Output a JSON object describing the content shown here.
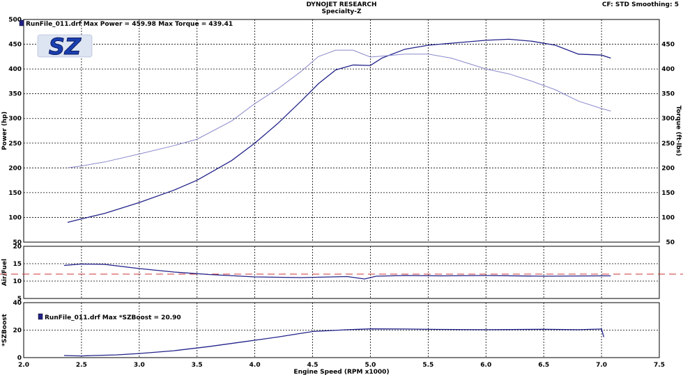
{
  "header": {
    "title": "DYNOJET RESEARCH",
    "subtitle": "Specialty-Z",
    "cf_label": "CF: STD  Smoothing: 5"
  },
  "logo": {
    "text": "SZ"
  },
  "colors": {
    "power": "#22228a",
    "torque": "#8888cc",
    "boost": "#22228a",
    "afr": "#22228a",
    "afr_ref": "#cc3333",
    "grid": "#000000"
  },
  "chart_data": [
    {
      "type": "line",
      "panel": "main",
      "legend": "RunFile_011.drf Max Power = 459.98    Max Torque = 439.41",
      "xlabel": "Engine Speed (RPM x1000)",
      "ylabel": "Power (hp)",
      "y2label": "Torque (ft-lbs)",
      "xlim": [
        2.0,
        7.5
      ],
      "ylim": [
        50,
        500
      ],
      "y2lim": [
        50,
        500
      ],
      "xticks": [
        "2.0",
        "2.5",
        "3.0",
        "3.5",
        "4.0",
        "4.5",
        "5.0",
        "5.5",
        "6.0",
        "6.5",
        "7.0",
        "7.5"
      ],
      "yticks": [
        "50",
        "100",
        "150",
        "200",
        "250",
        "300",
        "350",
        "400",
        "450",
        "500"
      ],
      "y2ticks": [
        "50",
        "100",
        "150",
        "200",
        "250",
        "300",
        "350",
        "400",
        "450"
      ],
      "grid": true,
      "series": [
        {
          "key": "power",
          "x": [
            2.38,
            2.5,
            2.7,
            3.0,
            3.3,
            3.5,
            3.8,
            4.0,
            4.2,
            4.4,
            4.55,
            4.7,
            4.85,
            5.0,
            5.1,
            5.3,
            5.5,
            5.7,
            6.0,
            6.2,
            6.4,
            6.6,
            6.8,
            7.0,
            7.08
          ],
          "values": [
            90,
            97,
            108,
            130,
            155,
            175,
            215,
            250,
            290,
            335,
            370,
            398,
            408,
            407,
            422,
            440,
            448,
            452,
            458,
            460,
            456,
            448,
            430,
            428,
            422
          ]
        },
        {
          "key": "torque",
          "x": [
            2.38,
            2.5,
            2.7,
            3.0,
            3.3,
            3.5,
            3.8,
            4.0,
            4.2,
            4.4,
            4.55,
            4.7,
            4.85,
            5.0,
            5.1,
            5.3,
            5.5,
            5.7,
            6.0,
            6.2,
            6.4,
            6.6,
            6.8,
            7.0,
            7.08
          ],
          "values": [
            200,
            204,
            212,
            228,
            245,
            258,
            295,
            330,
            360,
            395,
            425,
            438,
            438,
            424,
            426,
            430,
            430,
            422,
            400,
            390,
            375,
            358,
            335,
            320,
            315
          ]
        }
      ]
    },
    {
      "type": "line",
      "panel": "afr",
      "ylabel": "Air/Fuel",
      "xlim": [
        2.0,
        7.5
      ],
      "ylim": [
        5,
        20
      ],
      "yticks": [
        "5",
        "10",
        "15",
        "20"
      ],
      "reference_line": 12.0,
      "grid": true,
      "series": [
        {
          "key": "afr",
          "x": [
            2.35,
            2.5,
            2.7,
            3.0,
            3.3,
            3.6,
            4.0,
            4.4,
            4.8,
            4.95,
            5.05,
            5.3,
            5.6,
            6.0,
            6.5,
            7.0,
            7.08
          ],
          "values": [
            14.5,
            14.9,
            14.8,
            13.6,
            12.6,
            11.9,
            11.2,
            11.0,
            11.3,
            10.6,
            11.4,
            11.6,
            11.5,
            11.6,
            11.4,
            11.5,
            11.5
          ]
        }
      ]
    },
    {
      "type": "line",
      "panel": "boost",
      "legend": "RunFile_011.drf Max *SZBoost = 20.90",
      "ylabel": "*SZBoost",
      "xlim": [
        2.0,
        7.5
      ],
      "ylim": [
        0,
        40
      ],
      "yticks": [
        "0",
        "20",
        "40"
      ],
      "grid": true,
      "series": [
        {
          "key": "boost",
          "x": [
            2.35,
            2.5,
            2.6,
            2.8,
            3.0,
            3.3,
            3.6,
            3.9,
            4.2,
            4.5,
            4.8,
            5.0,
            5.3,
            5.6,
            6.0,
            6.5,
            6.8,
            7.0,
            7.02
          ],
          "values": [
            1.5,
            1.2,
            1.5,
            2.0,
            3.0,
            5.0,
            8.0,
            11.5,
            15.0,
            19.0,
            20.3,
            20.9,
            20.8,
            20.5,
            20.3,
            20.6,
            20.3,
            20.8,
            15.0
          ]
        }
      ]
    }
  ]
}
